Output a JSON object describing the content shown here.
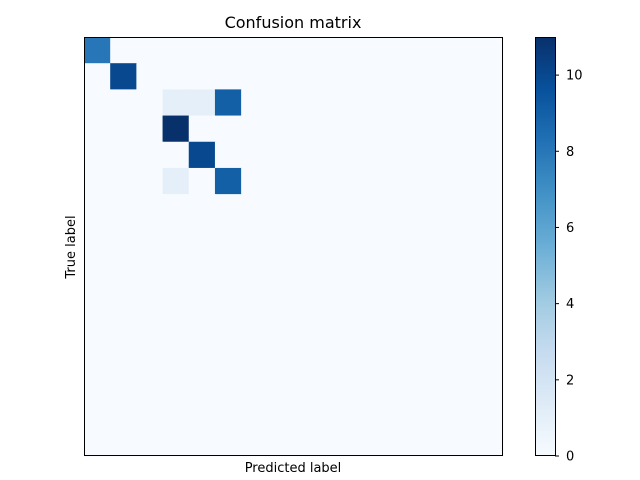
{
  "chart_data": {
    "type": "heatmap",
    "title": "Confusion matrix",
    "xlabel": "Predicted label",
    "ylabel": "True label",
    "grid": false,
    "x_ticks_visible": false,
    "y_ticks_visible": false,
    "colormap": "Blues",
    "colorbar": {
      "range": [
        0,
        11
      ],
      "ticks": [
        0,
        2,
        4,
        6,
        8,
        10
      ],
      "tick_labels": [
        "0",
        "2",
        "4",
        "6",
        "8",
        "10"
      ]
    },
    "matrix": [
      [
        8,
        0,
        0,
        0,
        0,
        0,
        0,
        0,
        0,
        0,
        0,
        0,
        0,
        0,
        0,
        0
      ],
      [
        0,
        10,
        0,
        0,
        0,
        0,
        0,
        0,
        0,
        0,
        0,
        0,
        0,
        0,
        0,
        0
      ],
      [
        0,
        0,
        0,
        1,
        1,
        9,
        0,
        0,
        0,
        0,
        0,
        0,
        0,
        0,
        0,
        0
      ],
      [
        0,
        0,
        0,
        11,
        0,
        0,
        0,
        0,
        0,
        0,
        0,
        0,
        0,
        0,
        0,
        0
      ],
      [
        0,
        0,
        0,
        0,
        10,
        0,
        0,
        0,
        0,
        0,
        0,
        0,
        0,
        0,
        0,
        0
      ],
      [
        0,
        0,
        0,
        1,
        0,
        9,
        0,
        0,
        0,
        0,
        0,
        0,
        0,
        0,
        0,
        0
      ],
      [
        0,
        0,
        0,
        0,
        0,
        0,
        0,
        0,
        0,
        0,
        0,
        0,
        0,
        0,
        0,
        0
      ],
      [
        0,
        0,
        0,
        0,
        0,
        0,
        0,
        0,
        0,
        0,
        0,
        0,
        0,
        0,
        0,
        0
      ],
      [
        0,
        0,
        0,
        0,
        0,
        0,
        0,
        0,
        0,
        0,
        0,
        0,
        0,
        0,
        0,
        0
      ],
      [
        0,
        0,
        0,
        0,
        0,
        0,
        0,
        0,
        0,
        0,
        0,
        0,
        0,
        0,
        0,
        0
      ],
      [
        0,
        0,
        0,
        0,
        0,
        0,
        0,
        0,
        0,
        0,
        0,
        0,
        0,
        0,
        0,
        0
      ],
      [
        0,
        0,
        0,
        0,
        0,
        0,
        0,
        0,
        0,
        0,
        0,
        0,
        0,
        0,
        0,
        0
      ],
      [
        0,
        0,
        0,
        0,
        0,
        0,
        0,
        0,
        0,
        0,
        0,
        0,
        0,
        0,
        0,
        0
      ],
      [
        0,
        0,
        0,
        0,
        0,
        0,
        0,
        0,
        0,
        0,
        0,
        0,
        0,
        0,
        0,
        0
      ],
      [
        0,
        0,
        0,
        0,
        0,
        0,
        0,
        0,
        0,
        0,
        0,
        0,
        0,
        0,
        0,
        0
      ],
      [
        0,
        0,
        0,
        0,
        0,
        0,
        0,
        0,
        0,
        0,
        0,
        0,
        0,
        0,
        0,
        0
      ]
    ]
  }
}
